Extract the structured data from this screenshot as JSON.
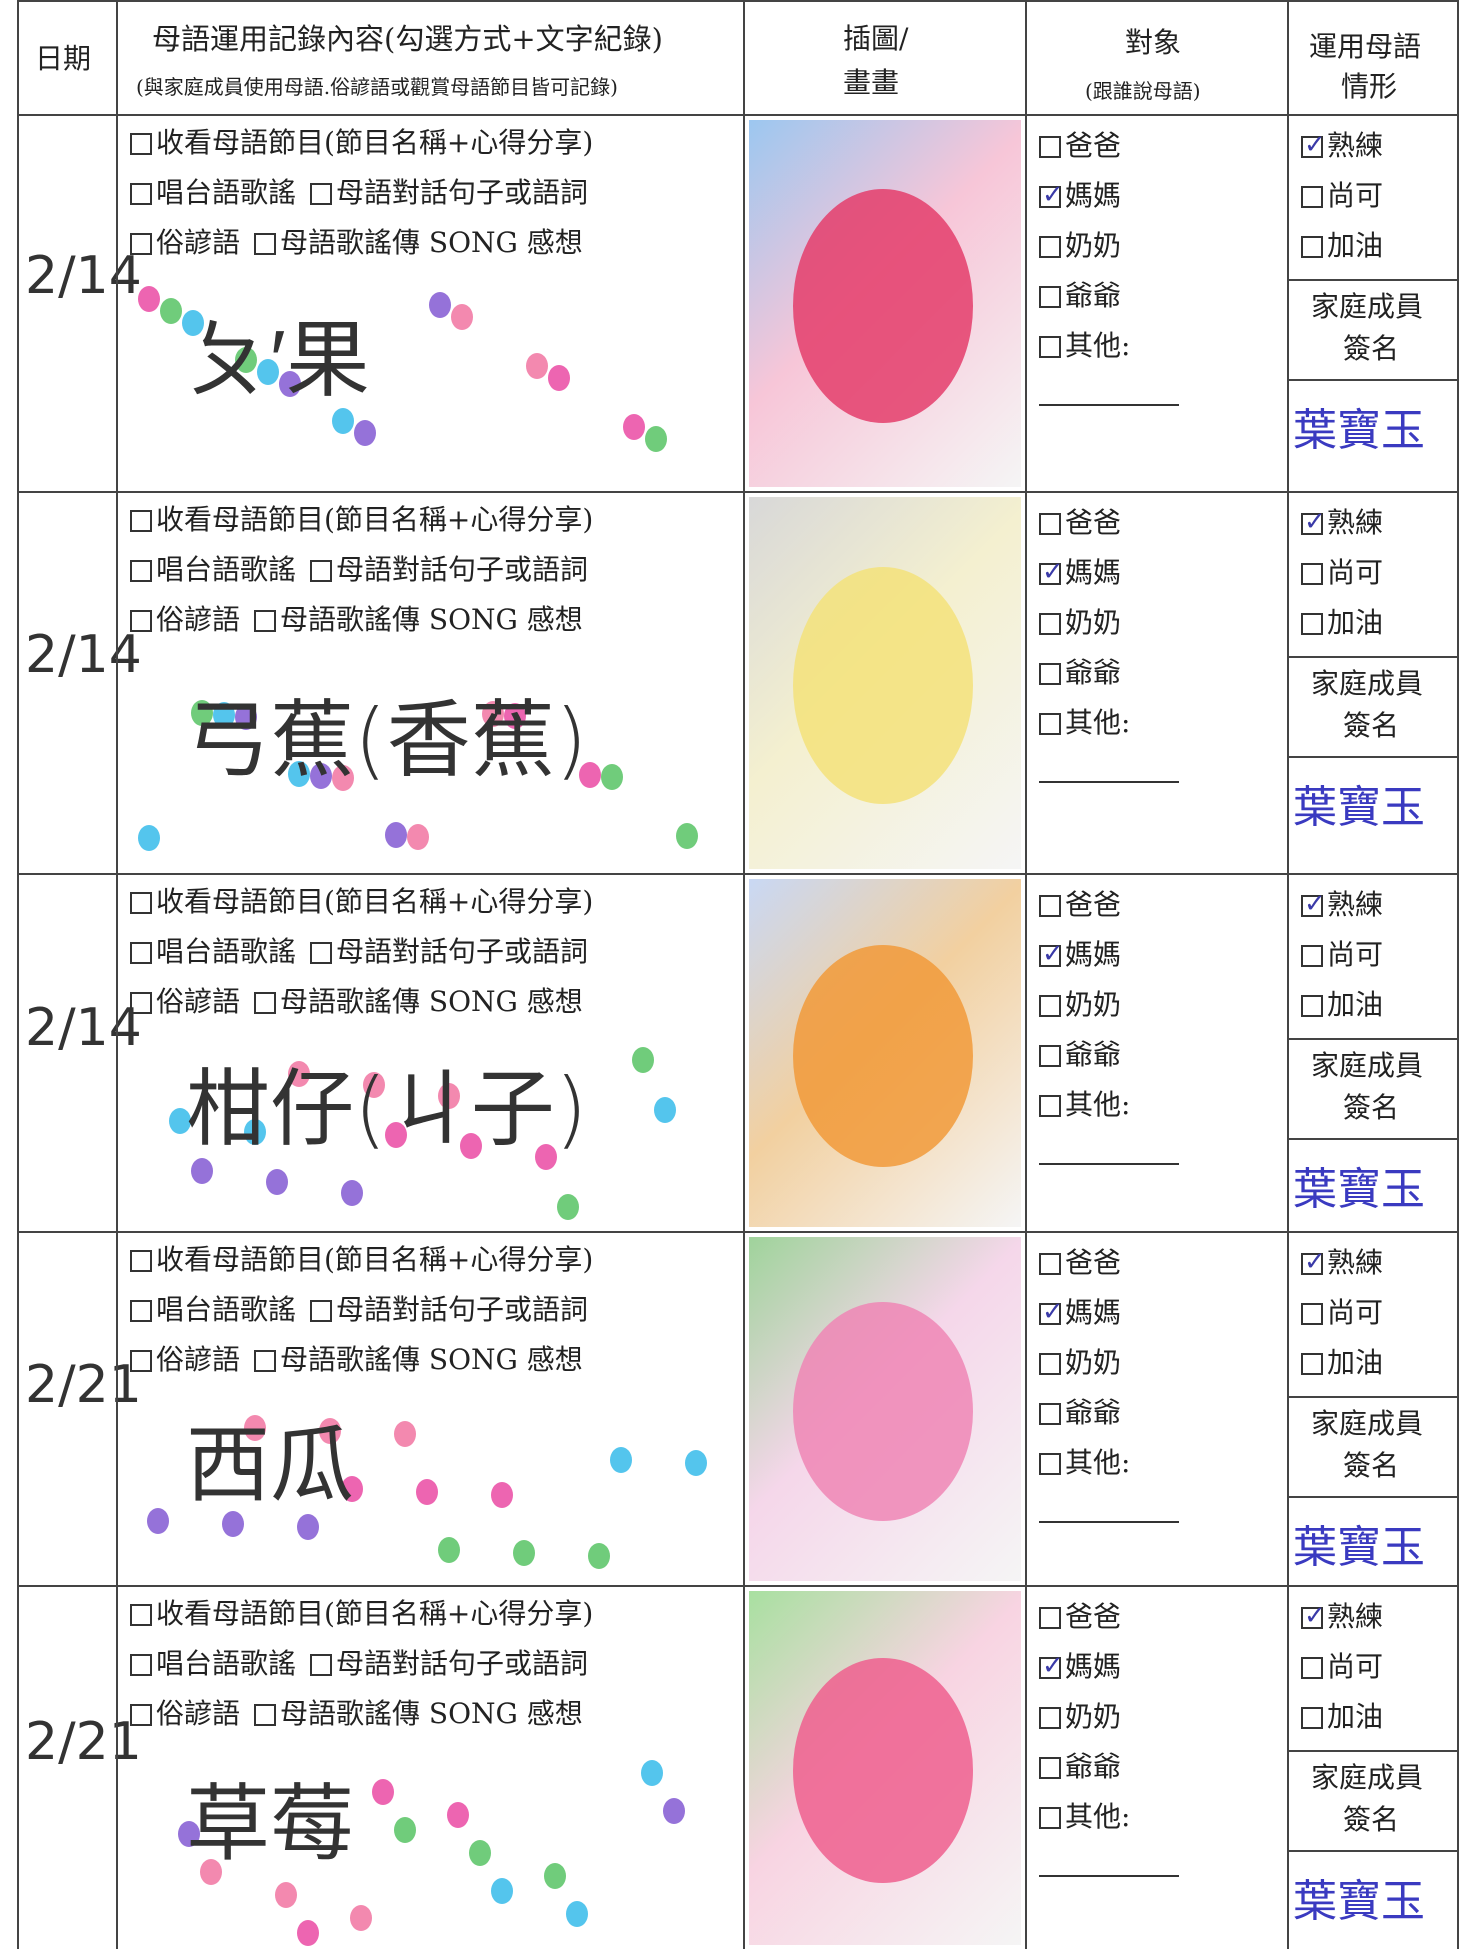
{
  "header": {
    "date": "日期",
    "content": "母語運用記錄內容(勾選方式+文字紀錄)",
    "content_note": "(與家庭成員使用母語.俗諺語或觀賞母語節目皆可記錄)",
    "drawing": [
      "插圖/",
      "畫畫"
    ],
    "target": "對象",
    "target_note": "(跟誰說母語)",
    "status": [
      "運用母語",
      "情形"
    ]
  },
  "rows": [
    {
      "date": "2/14",
      "activities": [
        "收看母語節目(節目名稱+心得分享)",
        "唱台語歌謠",
        "母語對話句子或語詞",
        "俗諺語",
        "母語歌謠傳 SONG 感想"
      ],
      "note": "ㄆ′果",
      "targets": [
        {
          "label": "爸爸",
          "checked": false
        },
        {
          "label": "媽媽",
          "checked": true
        },
        {
          "label": "奶奶",
          "checked": false
        },
        {
          "label": "爺爺",
          "checked": false
        },
        {
          "label": "其他:",
          "checked": false
        }
      ],
      "status": [
        {
          "label": "熟練",
          "checked": true
        },
        {
          "label": "尚可",
          "checked": false
        },
        {
          "label": "加油",
          "checked": false
        }
      ],
      "sign_label": [
        "家庭成員",
        "簽名"
      ],
      "signature": "葉寶玉"
    },
    {
      "date": "2/14",
      "activities": [
        "收看母語節目(節目名稱+心得分享)",
        "唱台語歌謠",
        "母語對話句子或語詞",
        "俗諺語",
        "母語歌謠傳 SONG 感想"
      ],
      "note": "弓蕉(香蕉)",
      "targets": [
        {
          "label": "爸爸",
          "checked": false
        },
        {
          "label": "媽媽",
          "checked": true
        },
        {
          "label": "奶奶",
          "checked": false
        },
        {
          "label": "爺爺",
          "checked": false
        },
        {
          "label": "其他:",
          "checked": false
        }
      ],
      "status": [
        {
          "label": "熟練",
          "checked": true
        },
        {
          "label": "尚可",
          "checked": false
        },
        {
          "label": "加油",
          "checked": false
        }
      ],
      "sign_label": [
        "家庭成員",
        "簽名"
      ],
      "signature": "葉寶玉"
    },
    {
      "date": "2/14",
      "activities": [
        "收看母語節目(節目名稱+心得分享)",
        "唱台語歌謠",
        "母語對話句子或語詞",
        "俗諺語",
        "母語歌謠傳 SONG 感想"
      ],
      "note": "柑仔(ㄐ子)",
      "targets": [
        {
          "label": "爸爸",
          "checked": false
        },
        {
          "label": "媽媽",
          "checked": true
        },
        {
          "label": "奶奶",
          "checked": false
        },
        {
          "label": "爺爺",
          "checked": false
        },
        {
          "label": "其他:",
          "checked": false
        }
      ],
      "status": [
        {
          "label": "熟練",
          "checked": true
        },
        {
          "label": "尚可",
          "checked": false
        },
        {
          "label": "加油",
          "checked": false
        }
      ],
      "sign_label": [
        "家庭成員",
        "簽名"
      ],
      "signature": "葉寶玉"
    },
    {
      "date": "2/21",
      "activities": [
        "收看母語節目(節目名稱+心得分享)",
        "唱台語歌謠",
        "母語對話句子或語詞",
        "俗諺語",
        "母語歌謠傳 SONG 感想"
      ],
      "note": "西瓜",
      "targets": [
        {
          "label": "爸爸",
          "checked": false
        },
        {
          "label": "媽媽",
          "checked": true
        },
        {
          "label": "奶奶",
          "checked": false
        },
        {
          "label": "爺爺",
          "checked": false
        },
        {
          "label": "其他:",
          "checked": false
        }
      ],
      "status": [
        {
          "label": "熟練",
          "checked": true
        },
        {
          "label": "尚可",
          "checked": false
        },
        {
          "label": "加油",
          "checked": false
        }
      ],
      "sign_label": [
        "家庭成員",
        "簽名"
      ],
      "signature": "葉寶玉"
    },
    {
      "date": "2/21",
      "activities": [
        "收看母語節目(節目名稱+心得分享)",
        "唱台語歌謠",
        "母語對話句子或語詞",
        "俗諺語",
        "母語歌謠傳 SONG 感想"
      ],
      "note": "草莓",
      "targets": [
        {
          "label": "爸爸",
          "checked": false
        },
        {
          "label": "媽媽",
          "checked": true
        },
        {
          "label": "奶奶",
          "checked": false
        },
        {
          "label": "爺爺",
          "checked": false
        },
        {
          "label": "其他:",
          "checked": false
        }
      ],
      "status": [
        {
          "label": "熟練",
          "checked": true
        },
        {
          "label": "尚可",
          "checked": false
        },
        {
          "label": "加油",
          "checked": false
        }
      ],
      "sign_label": [
        "家庭成員",
        "簽名"
      ],
      "signature": "葉寶玉"
    }
  ]
}
